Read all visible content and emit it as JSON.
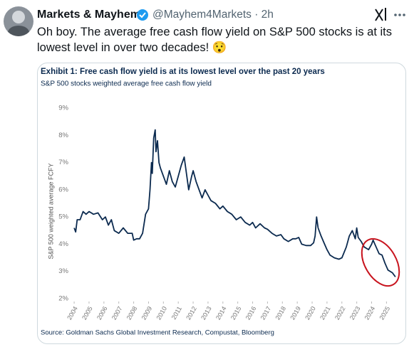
{
  "tweet": {
    "author": "Markets & Mayhem",
    "meta": "@Mayhem4Markets · 2h",
    "text": "Oh boy. The average free cash flow yield on S&P 500 stocks is at its lowest level in over two decades! 😯"
  },
  "chart_data": {
    "type": "line",
    "title": "Exhibit 1: Free cash flow yield is at its lowest level over the past 20 years",
    "subtitle": "S&P 500 stocks weighted average free cash flow yield",
    "y_label": "S&P 500 weighted average FCFY",
    "source": "Source: Goldman Sachs Global Investment Research, Compustat, Bloomberg",
    "color": "#0b2a4f",
    "x": [
      2004.0,
      2004.1,
      2004.2,
      2004.4,
      2004.6,
      2004.8,
      2005.0,
      2005.3,
      2005.6,
      2005.9,
      2006.1,
      2006.3,
      2006.5,
      2006.7,
      2007.0,
      2007.3,
      2007.6,
      2007.9,
      2008.0,
      2008.2,
      2008.4,
      2008.6,
      2008.8,
      2009.0,
      2009.1,
      2009.2,
      2009.25,
      2009.35,
      2009.45,
      2009.5,
      2009.6,
      2009.7,
      2009.8,
      2010.0,
      2010.2,
      2010.4,
      2010.6,
      2010.8,
      2011.0,
      2011.2,
      2011.4,
      2011.5,
      2011.7,
      2011.9,
      2012.0,
      2012.2,
      2012.4,
      2012.6,
      2012.8,
      2013.0,
      2013.2,
      2013.5,
      2013.8,
      2014.0,
      2014.3,
      2014.6,
      2014.9,
      2015.2,
      2015.5,
      2015.8,
      2016.0,
      2016.2,
      2016.5,
      2016.8,
      2017.0,
      2017.3,
      2017.6,
      2017.9,
      2018.1,
      2018.4,
      2018.7,
      2018.9,
      2019.1,
      2019.3,
      2019.6,
      2019.9,
      2020.1,
      2020.2,
      2020.3,
      2020.4,
      2020.6,
      2020.8,
      2021.0,
      2021.2,
      2021.5,
      2021.8,
      2022.0,
      2022.3,
      2022.5,
      2022.7,
      2022.9,
      2023.0,
      2023.1,
      2023.3,
      2023.5,
      2023.8,
      2024.0,
      2024.1,
      2024.3,
      2024.5,
      2024.7,
      2024.9,
      2025.1,
      2025.4,
      2025.6
    ],
    "values": [
      4.6,
      4.45,
      4.9,
      4.9,
      5.2,
      5.1,
      5.2,
      5.1,
      5.15,
      4.9,
      5.0,
      4.7,
      4.9,
      4.5,
      4.4,
      4.6,
      4.4,
      4.4,
      4.15,
      4.2,
      4.2,
      4.4,
      5.1,
      5.3,
      6.0,
      7.0,
      6.6,
      7.9,
      8.2,
      7.4,
      7.8,
      7.0,
      6.8,
      6.5,
      6.2,
      6.7,
      6.3,
      6.1,
      6.5,
      6.9,
      7.2,
      6.8,
      6.0,
      6.5,
      6.7,
      6.3,
      6.0,
      5.7,
      6.0,
      5.8,
      5.6,
      5.5,
      5.3,
      5.4,
      5.2,
      5.1,
      4.9,
      5.0,
      4.8,
      4.7,
      4.8,
      4.6,
      4.75,
      4.6,
      4.55,
      4.4,
      4.3,
      4.35,
      4.2,
      4.1,
      4.2,
      4.2,
      4.25,
      4.0,
      3.95,
      3.95,
      4.05,
      4.3,
      5.0,
      4.6,
      4.3,
      4.05,
      3.8,
      3.6,
      3.5,
      3.45,
      3.5,
      3.9,
      4.3,
      4.5,
      4.2,
      4.6,
      4.25,
      4.1,
      3.9,
      3.8,
      4.0,
      4.15,
      3.9,
      3.65,
      3.6,
      3.3,
      3.05,
      2.95,
      2.8
    ],
    "xlim": [
      2003.9,
      2025.7
    ],
    "xticks": [
      2004,
      2005,
      2006,
      2007,
      2008,
      2009,
      2010,
      2011,
      2012,
      2013,
      2014,
      2015,
      2016,
      2017,
      2018,
      2019,
      2020,
      2021,
      2022,
      2023,
      2024,
      2025
    ],
    "ylim": [
      2,
      9
    ],
    "yticks": [
      {
        "value": 2,
        "label": "2%"
      },
      {
        "value": 3,
        "label": "3%"
      },
      {
        "value": 4,
        "label": "4%"
      },
      {
        "value": 5,
        "label": "5%"
      },
      {
        "value": 6,
        "label": "6%"
      },
      {
        "value": 7,
        "label": "7%"
      },
      {
        "value": 8,
        "label": "8%"
      },
      {
        "value": 9,
        "label": "9%"
      }
    ],
    "grid": false
  }
}
